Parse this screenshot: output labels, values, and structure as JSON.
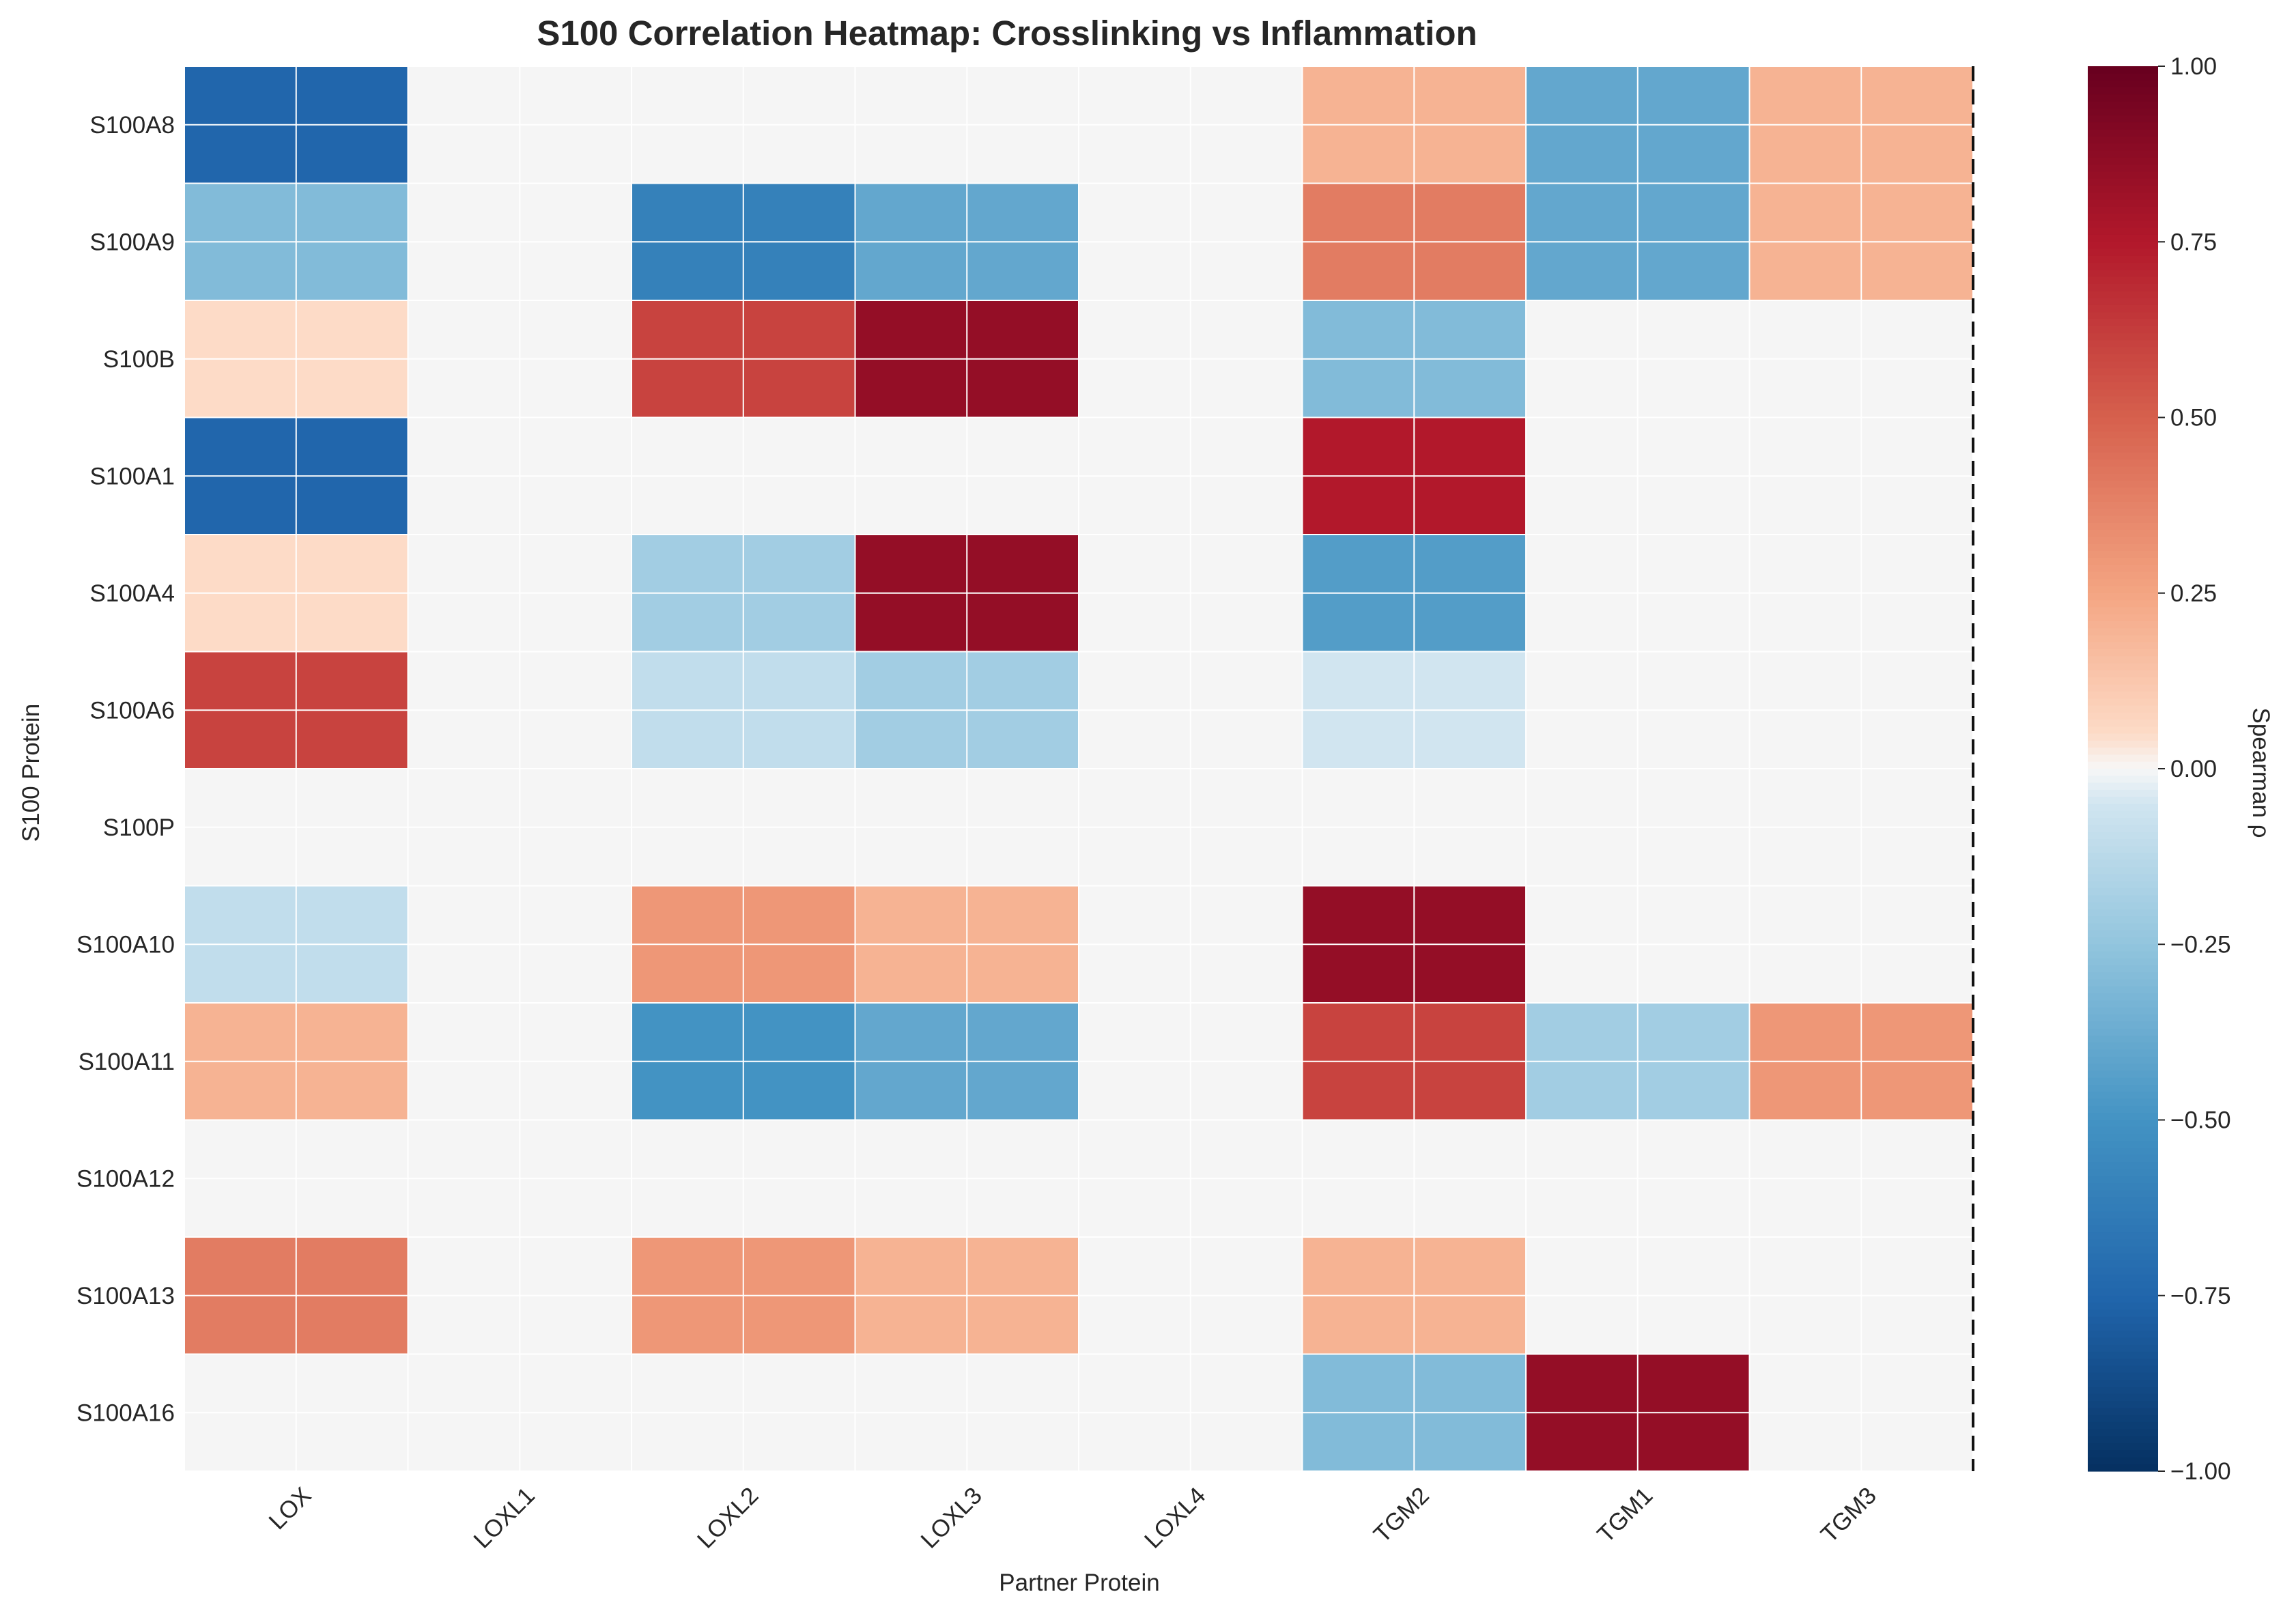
{
  "chart_data": {
    "type": "heatmap",
    "title": "S100 Correlation Heatmap: Crosslinking vs Inflammation",
    "xlabel": "Partner Protein",
    "ylabel": "S100 Protein",
    "x_categories": [
      "LOX",
      "LOXL1",
      "LOXL2",
      "LOXL3",
      "LOXL4",
      "TGM2",
      "TGM1",
      "TGM3"
    ],
    "y_categories": [
      "S100A8",
      "S100A9",
      "S100B",
      "S100A1",
      "S100A4",
      "S100A6",
      "S100P",
      "S100A10",
      "S100A11",
      "S100A12",
      "S100A13",
      "S100A16"
    ],
    "values": [
      [
        -0.75,
        null,
        null,
        null,
        null,
        0.2,
        -0.4,
        0.2
      ],
      [
        -0.3,
        null,
        -0.6,
        -0.4,
        null,
        0.4,
        -0.4,
        0.2
      ],
      [
        0.05,
        null,
        0.6,
        0.85,
        null,
        -0.3,
        null,
        null
      ],
      [
        -0.75,
        null,
        null,
        null,
        null,
        0.75,
        null,
        null
      ],
      [
        0.05,
        null,
        -0.2,
        0.85,
        null,
        -0.45,
        null,
        null
      ],
      [
        0.6,
        null,
        -0.1,
        -0.2,
        null,
        -0.05,
        null,
        null
      ],
      [
        null,
        null,
        null,
        null,
        null,
        null,
        null,
        null
      ],
      [
        -0.1,
        null,
        0.3,
        0.2,
        null,
        0.85,
        null,
        null
      ],
      [
        0.2,
        null,
        -0.5,
        -0.4,
        null,
        0.6,
        -0.2,
        0.3
      ],
      [
        null,
        null,
        null,
        null,
        null,
        null,
        null,
        null
      ],
      [
        0.4,
        null,
        0.3,
        0.2,
        null,
        0.2,
        null,
        null
      ],
      [
        null,
        null,
        null,
        null,
        null,
        -0.3,
        0.85,
        null
      ]
    ],
    "missing_color": "#f5f5f5",
    "colormap": "RdBu_r",
    "vmin": -1.0,
    "vmax": 1.0,
    "colorbar": {
      "label": "Spearman ρ",
      "ticks": [
        "1.00",
        "0.75",
        "0.50",
        "0.25",
        "0.00",
        "−0.25",
        "−0.50",
        "−0.75",
        "−1.00"
      ]
    },
    "grid": true,
    "separator_after_column": "TGM3"
  }
}
